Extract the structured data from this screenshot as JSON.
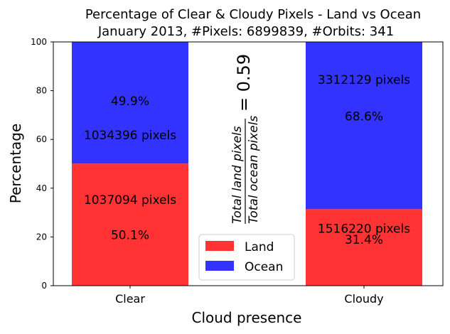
{
  "chart_data": {
    "type": "bar",
    "stacked": true,
    "title": "Percentage of Clear & Cloudy Pixels - Land vs Ocean",
    "subtitle": "January 2013, #Pixels: 6899839, #Orbits: 341",
    "xlabel": "Cloud presence",
    "ylabel": "Percentage",
    "ylim": [
      0,
      100
    ],
    "yticks": [
      "0",
      "20",
      "40",
      "60",
      "80",
      "100"
    ],
    "categories": [
      "Clear",
      "Cloudy"
    ],
    "series": [
      {
        "name": "Land",
        "color": "#ff3333",
        "values": [
          50.1,
          31.4
        ],
        "labels": [
          {
            "pixels": "1037094 pixels",
            "percent": "50.1%"
          },
          {
            "pixels": "1516220 pixels",
            "percent": "31.4%"
          }
        ]
      },
      {
        "name": "Ocean",
        "color": "#3333ff",
        "values": [
          49.9,
          68.6
        ],
        "labels": [
          {
            "pixels": "1034396 pixels",
            "percent": "49.9%"
          },
          {
            "pixels": "3312129 pixels",
            "percent": "68.6%"
          }
        ]
      }
    ],
    "legend_position": "lower-center",
    "annotation": {
      "numerator": "Total land pixels",
      "denominator": "Total ocean pixels",
      "value": "= 0.59"
    }
  }
}
